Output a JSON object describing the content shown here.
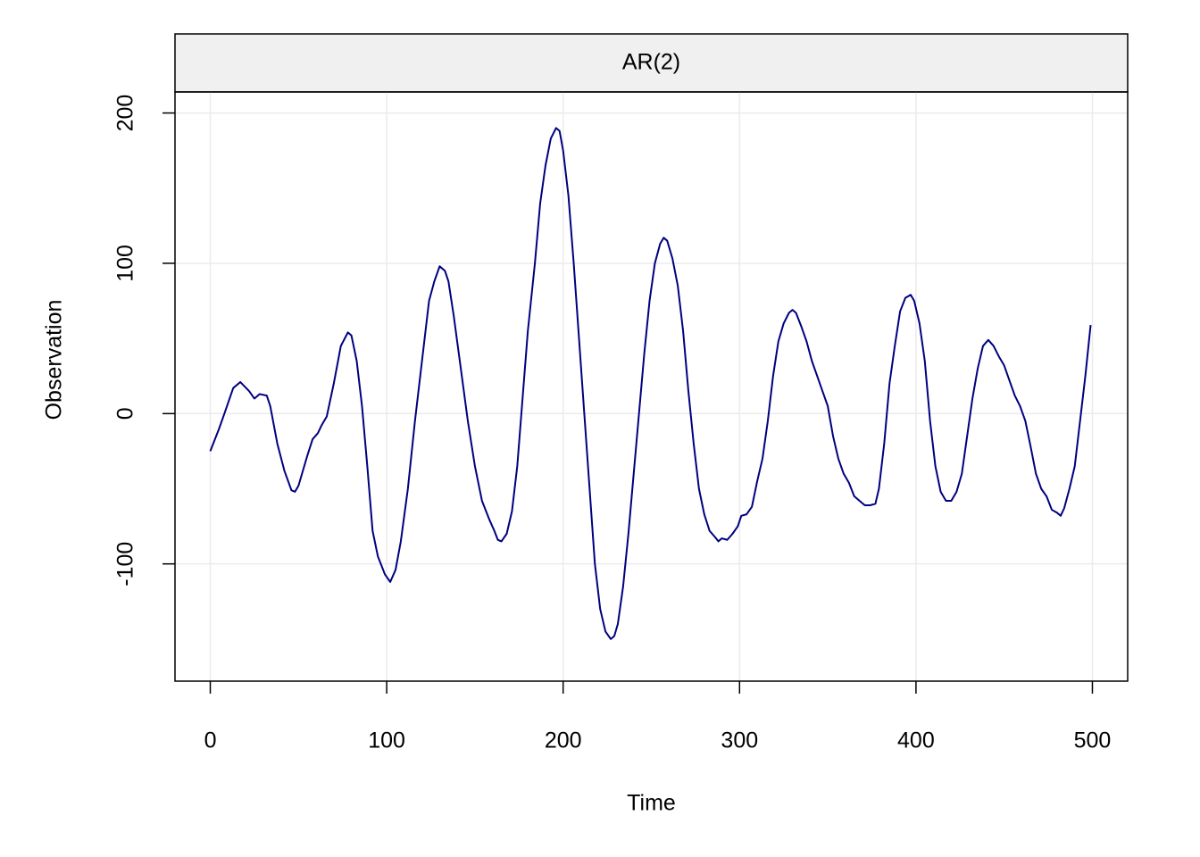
{
  "chart_data": {
    "type": "line",
    "strip": "AR(2)",
    "xlabel": "Time",
    "ylabel": "Observation",
    "x": [
      0,
      5,
      8,
      13,
      17,
      22,
      25,
      28,
      32,
      34,
      38,
      42,
      46,
      48,
      50,
      52,
      55,
      58,
      61,
      63,
      66,
      70,
      74,
      78,
      80,
      83,
      86,
      89,
      92,
      95,
      99,
      102,
      105,
      108,
      112,
      116,
      120,
      124,
      127,
      130,
      133,
      135,
      138,
      142,
      146,
      150,
      154,
      158,
      161,
      163,
      165,
      168,
      171,
      174,
      177,
      180,
      184,
      187,
      190,
      193,
      196,
      198,
      200,
      203,
      206,
      209,
      212,
      215,
      218,
      221,
      224,
      227,
      229,
      231,
      234,
      237,
      240,
      243,
      246,
      249,
      252,
      255,
      257,
      259,
      262,
      265,
      268,
      271,
      274,
      277,
      280,
      283,
      286,
      288,
      290,
      293,
      296,
      299,
      301,
      304,
      307,
      310,
      313,
      316,
      319,
      322,
      325,
      328,
      330,
      332,
      335,
      338,
      341,
      344,
      347,
      350,
      353,
      356,
      359,
      362,
      365,
      368,
      371,
      374,
      377,
      379,
      382,
      385,
      388,
      391,
      394,
      397,
      399,
      402,
      405,
      408,
      411,
      414,
      417,
      420,
      423,
      426,
      429,
      432,
      435,
      438,
      441,
      444,
      447,
      450,
      453,
      456,
      459,
      462,
      465,
      468,
      471,
      474,
      477,
      480,
      482,
      484,
      487,
      490,
      493,
      496,
      499
    ],
    "series": [
      {
        "name": "AR(2)",
        "color": "#000080",
        "values": [
          -25,
          -10,
          0,
          17,
          21,
          15,
          10,
          13,
          12,
          5,
          -20,
          -38,
          -51,
          -52,
          -48,
          -40,
          -28,
          -17,
          -13,
          -8,
          -2,
          20,
          45,
          54,
          52,
          35,
          5,
          -35,
          -78,
          -95,
          -107,
          -112,
          -104,
          -85,
          -50,
          -5,
          35,
          75,
          88,
          98,
          95,
          88,
          65,
          30,
          -5,
          -35,
          -58,
          -70,
          -78,
          -84,
          -85,
          -80,
          -65,
          -35,
          10,
          55,
          100,
          140,
          165,
          183,
          190,
          188,
          175,
          145,
          100,
          50,
          0,
          -50,
          -100,
          -130,
          -145,
          -150,
          -148,
          -140,
          -115,
          -80,
          -40,
          0,
          40,
          75,
          100,
          113,
          117,
          115,
          103,
          85,
          55,
          15,
          -20,
          -50,
          -67,
          -78,
          -82,
          -85,
          -83,
          -84,
          -80,
          -75,
          -68,
          -67,
          -62,
          -45,
          -30,
          -5,
          25,
          48,
          60,
          67,
          69,
          67,
          58,
          48,
          35,
          25,
          15,
          5,
          -15,
          -30,
          -40,
          -46,
          -55,
          -58,
          -61,
          -61,
          -60,
          -50,
          -20,
          20,
          45,
          68,
          77,
          79,
          75,
          60,
          35,
          -5,
          -35,
          -52,
          -58,
          -58,
          -52,
          -40,
          -15,
          10,
          30,
          45,
          49,
          45,
          38,
          32,
          22,
          12,
          5,
          -5,
          -22,
          -40,
          -50,
          -55,
          -64,
          -66,
          -68,
          -63,
          -50,
          -35,
          -5,
          25,
          59
        ]
      }
    ],
    "xlim": [
      -20,
      520
    ],
    "ylim": [
      -178,
      214
    ],
    "xticks": [
      0,
      100,
      200,
      300,
      400,
      500
    ],
    "yticks": [
      -100,
      0,
      100,
      200
    ],
    "grid": true
  }
}
